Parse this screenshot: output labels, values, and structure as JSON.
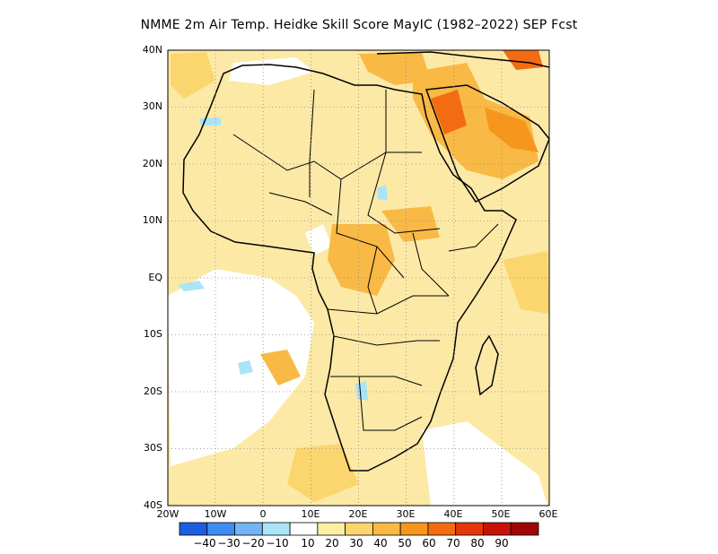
{
  "title": "NMME 2m Air Temp. Heidke Skill Score MayIC (1982–2022) SEP Fcst",
  "map": {
    "lat_range": [
      -40,
      40
    ],
    "lon_range": [
      -20,
      60
    ],
    "lat_ticks": [
      "40N",
      "30N",
      "20N",
      "10N",
      "EQ",
      "10S",
      "20S",
      "30S",
      "40S"
    ],
    "lon_ticks": [
      "20W",
      "10W",
      "0",
      "10E",
      "20E",
      "30E",
      "40E",
      "50E",
      "60E"
    ],
    "grid": "dotted",
    "background_color": "#fde9a6"
  },
  "colorbar": {
    "colors": [
      "#1b5fe0",
      "#3d8ef0",
      "#72b4f4",
      "#a9e5f7",
      "#ffffff",
      "#fdeea3",
      "#fbd66e",
      "#f9b945",
      "#f7961c",
      "#f56b12",
      "#e5370b",
      "#c81208",
      "#a00404"
    ],
    "labels": [
      "−40",
      "−30",
      "−20",
      "−10",
      "10",
      "20",
      "30",
      "40",
      "50",
      "60",
      "70",
      "80",
      "90"
    ]
  }
}
